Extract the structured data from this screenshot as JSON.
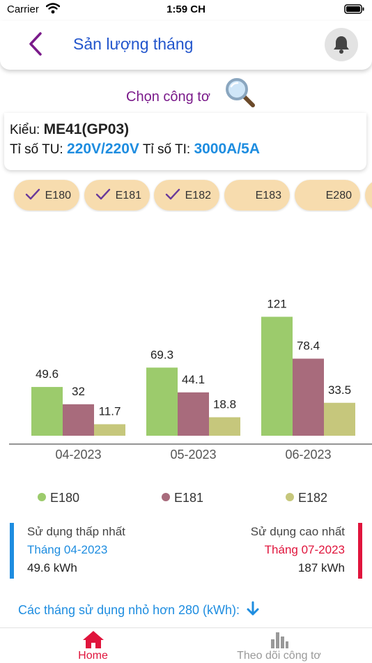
{
  "status_bar": {
    "carrier": "Carrier",
    "time": "1:59 CH"
  },
  "header": {
    "title": "Sản lượng tháng",
    "back_icon": "chevron-left-icon",
    "bell_icon": "bell-icon"
  },
  "meter_select": {
    "label": "Chọn công tơ",
    "icon": "magnifier-icon"
  },
  "info": {
    "type_label": "Kiểu:",
    "type_value": "ME41(GP03)",
    "tu_label": "Tỉ số TU:",
    "tu_value": "220V/220V",
    "ti_label": "Tỉ số TI:",
    "ti_value": "3000A/5A"
  },
  "chips": [
    {
      "label": "E180",
      "checked": true
    },
    {
      "label": "E181",
      "checked": true
    },
    {
      "label": "E182",
      "checked": true
    },
    {
      "label": "E183",
      "checked": false
    },
    {
      "label": "E280",
      "checked": false
    }
  ],
  "chart_data": {
    "type": "bar",
    "categories": [
      "04-2023",
      "05-2023",
      "06-2023"
    ],
    "series": [
      {
        "name": "E180",
        "color": "#9ccb6c",
        "values": [
          49.6,
          69.3,
          121
        ]
      },
      {
        "name": "E181",
        "color": "#a86b7c",
        "values": [
          32,
          44.1,
          78.4
        ]
      },
      {
        "name": "E182",
        "color": "#c6c77c",
        "values": [
          11.7,
          18.8,
          33.5
        ]
      }
    ],
    "labels": [
      [
        "49.6",
        "32",
        "11.7"
      ],
      [
        "69.3",
        "44.1",
        "18.8"
      ],
      [
        "121",
        "78.4",
        "33.5"
      ]
    ],
    "legend_position": "bottom",
    "grid": false
  },
  "stats": {
    "low": {
      "title": "Sử dụng thấp nhất",
      "month": "Tháng 04-2023",
      "value": "49.6 kWh"
    },
    "high": {
      "title": "Sử dụng cao nhất",
      "month": "Tháng 07-2023",
      "value": "187 kWh"
    }
  },
  "months_less": {
    "text": "Các tháng sử dụng nhỏ hơn 280 (kWh):",
    "icon": "arrow-down-icon"
  },
  "tabs": [
    {
      "label": "Home",
      "icon": "home-icon",
      "active": true
    },
    {
      "label": "Theo dõi công tơ",
      "icon": "bar-chart-icon",
      "active": false
    }
  ],
  "colors": {
    "accent_blue": "#1e8de0",
    "accent_red": "#e0143c",
    "title_blue": "#2255cc",
    "purple": "#7a1a8a",
    "chip_bg": "#f7dcae"
  }
}
